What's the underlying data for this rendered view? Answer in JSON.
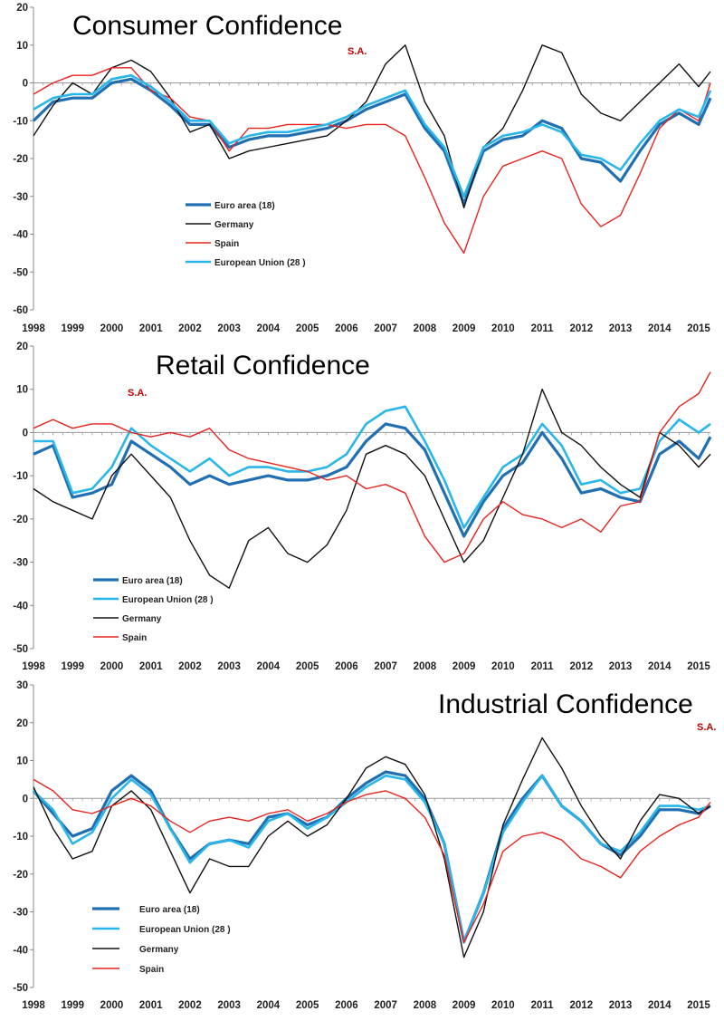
{
  "chart_data": [
    {
      "type": "line",
      "title": "Consumer Confidence",
      "note": "S.A.",
      "xlabel": "",
      "ylabel": "",
      "xlim": [
        1998,
        2015.3
      ],
      "ylim": [
        -60,
        20
      ],
      "yticks": [
        20,
        10,
        0,
        -10,
        -20,
        -30,
        -40,
        -50,
        -60
      ],
      "xticks": [
        "1998",
        "1999",
        "2000",
        "2001",
        "2002",
        "2003",
        "2004",
        "2005",
        "2006",
        "2007",
        "2008",
        "2009",
        "2010",
        "2011",
        "2012",
        "2013",
        "2014",
        "2015"
      ],
      "legend_position": "lower-left",
      "series": [
        {
          "name": "Euro area (18)",
          "color": "#1f6fb2",
          "x": [
            1998,
            1998.5,
            1999,
            1999.5,
            2000,
            2000.5,
            2001,
            2001.5,
            2002,
            2002.5,
            2003,
            2003.5,
            2004,
            2004.5,
            2005,
            2005.5,
            2006,
            2006.5,
            2007,
            2007.5,
            2008,
            2008.5,
            2009,
            2009.5,
            2010,
            2010.5,
            2011,
            2011.5,
            2012,
            2012.5,
            2013,
            2013.5,
            2014,
            2014.5,
            2015,
            2015.3
          ],
          "y": [
            -10,
            -5,
            -4,
            -4,
            0,
            1,
            -2,
            -6,
            -11,
            -11,
            -17,
            -15,
            -14,
            -14,
            -13,
            -12,
            -10,
            -7,
            -5,
            -3,
            -12,
            -18,
            -32,
            -18,
            -15,
            -14,
            -10,
            -12,
            -20,
            -21,
            -26,
            -18,
            -11,
            -8,
            -11,
            -4
          ]
        },
        {
          "name": "Germany",
          "color": "#111111",
          "x": [
            1998,
            1998.5,
            1999,
            1999.5,
            2000,
            2000.5,
            2001,
            2001.5,
            2002,
            2002.5,
            2003,
            2003.5,
            2004,
            2004.5,
            2005,
            2005.5,
            2006,
            2006.5,
            2007,
            2007.5,
            2008,
            2008.5,
            2009,
            2009.5,
            2010,
            2010.5,
            2011,
            2011.5,
            2012,
            2012.5,
            2013,
            2013.5,
            2014,
            2014.5,
            2015,
            2015.3
          ],
          "y": [
            -14,
            -6,
            0,
            -3,
            4,
            6,
            3,
            -4,
            -13,
            -11,
            -20,
            -18,
            -17,
            -16,
            -15,
            -14,
            -10,
            -5,
            5,
            10,
            -5,
            -14,
            -33,
            -17,
            -12,
            -2,
            10,
            8,
            -3,
            -8,
            -10,
            -5,
            0,
            5,
            -1,
            3
          ]
        },
        {
          "name": "Spain",
          "color": "#e8231e",
          "x": [
            1998,
            1998.5,
            1999,
            1999.5,
            2000,
            2000.5,
            2001,
            2001.5,
            2002,
            2002.5,
            2003,
            2003.5,
            2004,
            2004.5,
            2005,
            2005.5,
            2006,
            2006.5,
            2007,
            2007.5,
            2008,
            2008.5,
            2009,
            2009.5,
            2010,
            2010.5,
            2011,
            2011.5,
            2012,
            2012.5,
            2013,
            2013.5,
            2014,
            2014.5,
            2015,
            2015.3
          ],
          "y": [
            -3,
            0,
            2,
            2,
            4,
            4,
            -2,
            -4,
            -9,
            -10,
            -18,
            -12,
            -12,
            -11,
            -11,
            -11,
            -12,
            -11,
            -11,
            -14,
            -25,
            -37,
            -45,
            -30,
            -22,
            -20,
            -18,
            -20,
            -32,
            -38,
            -35,
            -24,
            -12,
            -7,
            -10,
            0
          ]
        },
        {
          "name": "European Union (28 )",
          "color": "#29b6ea",
          "x": [
            1998,
            1998.5,
            1999,
            1999.5,
            2000,
            2000.5,
            2001,
            2001.5,
            2002,
            2002.5,
            2003,
            2003.5,
            2004,
            2004.5,
            2005,
            2005.5,
            2006,
            2006.5,
            2007,
            2007.5,
            2008,
            2008.5,
            2009,
            2009.5,
            2010,
            2010.5,
            2011,
            2011.5,
            2012,
            2012.5,
            2013,
            2013.5,
            2014,
            2014.5,
            2015,
            2015.3
          ],
          "y": [
            -7,
            -4,
            -3,
            -3,
            1,
            2,
            -1,
            -5,
            -10,
            -10,
            -16,
            -14,
            -13,
            -13,
            -12,
            -11,
            -9,
            -6,
            -4,
            -2,
            -11,
            -17,
            -30,
            -17,
            -14,
            -13,
            -11,
            -13,
            -19,
            -20,
            -23,
            -16,
            -10,
            -7,
            -9,
            -2
          ]
        }
      ]
    },
    {
      "type": "line",
      "title": "Retail Confidence",
      "note": "S.A.",
      "xlabel": "",
      "ylabel": "",
      "xlim": [
        1998,
        2015.3
      ],
      "ylim": [
        -50,
        20
      ],
      "yticks": [
        20,
        10,
        0,
        -10,
        -20,
        -30,
        -40,
        -50
      ],
      "xticks": [
        "1998",
        "1999",
        "2000",
        "2001",
        "2002",
        "2003",
        "2004",
        "2005",
        "2006",
        "2007",
        "2008",
        "2009",
        "2010",
        "2011",
        "2012",
        "2013",
        "2014",
        "2015"
      ],
      "legend_position": "lower-left",
      "series": [
        {
          "name": "Euro area (18)",
          "color": "#1f6fb2",
          "x": [
            1998,
            1998.5,
            1999,
            1999.5,
            2000,
            2000.5,
            2001,
            2001.5,
            2002,
            2002.5,
            2003,
            2003.5,
            2004,
            2004.5,
            2005,
            2005.5,
            2006,
            2006.5,
            2007,
            2007.5,
            2008,
            2008.5,
            2009,
            2009.5,
            2010,
            2010.5,
            2011,
            2011.5,
            2012,
            2012.5,
            2013,
            2013.5,
            2014,
            2014.5,
            2015,
            2015.3
          ],
          "y": [
            -5,
            -3,
            -15,
            -14,
            -12,
            -2,
            -5,
            -8,
            -12,
            -10,
            -12,
            -11,
            -10,
            -11,
            -11,
            -10,
            -8,
            -2,
            2,
            1,
            -4,
            -14,
            -24,
            -16,
            -10,
            -7,
            0,
            -6,
            -14,
            -13,
            -15,
            -16,
            -5,
            -2,
            -6,
            -1
          ]
        },
        {
          "name": "European Union (28 )",
          "color": "#29b6ea",
          "x": [
            1998,
            1998.5,
            1999,
            1999.5,
            2000,
            2000.5,
            2001,
            2001.5,
            2002,
            2002.5,
            2003,
            2003.5,
            2004,
            2004.5,
            2005,
            2005.5,
            2006,
            2006.5,
            2007,
            2007.5,
            2008,
            2008.5,
            2009,
            2009.5,
            2010,
            2010.5,
            2011,
            2011.5,
            2012,
            2012.5,
            2013,
            2013.5,
            2014,
            2014.5,
            2015,
            2015.3
          ],
          "y": [
            -2,
            -2,
            -14,
            -13,
            -8,
            1,
            -3,
            -6,
            -9,
            -6,
            -10,
            -8,
            -8,
            -9,
            -9,
            -8,
            -5,
            2,
            5,
            6,
            -2,
            -11,
            -22,
            -15,
            -8,
            -5,
            2,
            -3,
            -12,
            -11,
            -14,
            -13,
            -2,
            3,
            0,
            2
          ]
        },
        {
          "name": "Germany",
          "color": "#111111",
          "x": [
            1998,
            1998.5,
            1999,
            1999.5,
            2000,
            2000.5,
            2001,
            2001.5,
            2002,
            2002.5,
            2003,
            2003.5,
            2004,
            2004.5,
            2005,
            2005.5,
            2006,
            2006.5,
            2007,
            2007.5,
            2008,
            2008.5,
            2009,
            2009.5,
            2010,
            2010.5,
            2011,
            2011.5,
            2012,
            2012.5,
            2013,
            2013.5,
            2014,
            2014.5,
            2015,
            2015.3
          ],
          "y": [
            -13,
            -16,
            -18,
            -20,
            -10,
            -5,
            -10,
            -15,
            -25,
            -33,
            -36,
            -25,
            -22,
            -28,
            -30,
            -26,
            -18,
            -5,
            -3,
            -5,
            -10,
            -20,
            -30,
            -25,
            -15,
            -5,
            10,
            0,
            -3,
            -8,
            -12,
            -15,
            0,
            -3,
            -8,
            -5
          ]
        },
        {
          "name": "Spain",
          "color": "#e8231e",
          "x": [
            1998,
            1998.5,
            1999,
            1999.5,
            2000,
            2000.5,
            2001,
            2001.5,
            2002,
            2002.5,
            2003,
            2003.5,
            2004,
            2004.5,
            2005,
            2005.5,
            2006,
            2006.5,
            2007,
            2007.5,
            2008,
            2008.5,
            2009,
            2009.5,
            2010,
            2010.5,
            2011,
            2011.5,
            2012,
            2012.5,
            2013,
            2013.5,
            2014,
            2014.5,
            2015,
            2015.3
          ],
          "y": [
            1,
            3,
            1,
            2,
            2,
            0,
            -1,
            0,
            -1,
            1,
            -4,
            -6,
            -7,
            -8,
            -9,
            -11,
            -10,
            -13,
            -12,
            -14,
            -24,
            -30,
            -28,
            -20,
            -16,
            -19,
            -20,
            -22,
            -20,
            -23,
            -17,
            -16,
            0,
            6,
            9,
            14
          ]
        }
      ]
    },
    {
      "type": "line",
      "title": "Industrial Confidence",
      "note": "S.A.",
      "xlabel": "",
      "ylabel": "",
      "xlim": [
        1998,
        2015.3
      ],
      "ylim": [
        -50,
        30
      ],
      "yticks": [
        30,
        20,
        10,
        0,
        -10,
        -20,
        -30,
        -40,
        -50
      ],
      "xticks": [
        "1998",
        "1999",
        "2000",
        "2001",
        "2002",
        "2003",
        "2004",
        "2005",
        "2006",
        "2007",
        "2008",
        "2009",
        "2010",
        "2011",
        "2012",
        "2013",
        "2014",
        "2015"
      ],
      "legend_position": "lower-left",
      "series": [
        {
          "name": "Euro area (18)",
          "color": "#1f6fb2",
          "x": [
            1998,
            1998.5,
            1999,
            1999.5,
            2000,
            2000.5,
            2001,
            2001.5,
            2002,
            2002.5,
            2003,
            2003.5,
            2004,
            2004.5,
            2005,
            2005.5,
            2006,
            2006.5,
            2007,
            2007.5,
            2008,
            2008.5,
            2009,
            2009.5,
            2010,
            2010.5,
            2011,
            2011.5,
            2012,
            2012.5,
            2013,
            2013.5,
            2014,
            2014.5,
            2015,
            2015.3
          ],
          "y": [
            2,
            -4,
            -10,
            -8,
            2,
            6,
            2,
            -8,
            -16,
            -12,
            -11,
            -12,
            -5,
            -4,
            -7,
            -5,
            0,
            4,
            7,
            6,
            0,
            -12,
            -38,
            -25,
            -8,
            0,
            6,
            -2,
            -6,
            -12,
            -15,
            -10,
            -3,
            -3,
            -4,
            -2
          ]
        },
        {
          "name": "European Union (28 )",
          "color": "#29b6ea",
          "x": [
            1998,
            1998.5,
            1999,
            1999.5,
            2000,
            2000.5,
            2001,
            2001.5,
            2002,
            2002.5,
            2003,
            2003.5,
            2004,
            2004.5,
            2005,
            2005.5,
            2006,
            2006.5,
            2007,
            2007.5,
            2008,
            2008.5,
            2009,
            2009.5,
            2010,
            2010.5,
            2011,
            2011.5,
            2012,
            2012.5,
            2013,
            2013.5,
            2014,
            2014.5,
            2015,
            2015.3
          ],
          "y": [
            2,
            -3,
            -12,
            -9,
            0,
            5,
            1,
            -8,
            -17,
            -12,
            -11,
            -13,
            -6,
            -4,
            -8,
            -5,
            -1,
            3,
            6,
            5,
            -1,
            -12,
            -38,
            -25,
            -9,
            -1,
            6,
            -2,
            -6,
            -12,
            -14,
            -9,
            -2,
            -2,
            -3,
            -2
          ]
        },
        {
          "name": "Germany",
          "color": "#111111",
          "x": [
            1998,
            1998.5,
            1999,
            1999.5,
            2000,
            2000.5,
            2001,
            2001.5,
            2002,
            2002.5,
            2003,
            2003.5,
            2004,
            2004.5,
            2005,
            2005.5,
            2006,
            2006.5,
            2007,
            2007.5,
            2008,
            2008.5,
            2009,
            2009.5,
            2010,
            2010.5,
            2011,
            2011.5,
            2012,
            2012.5,
            2013,
            2013.5,
            2014,
            2014.5,
            2015,
            2015.3
          ],
          "y": [
            3,
            -8,
            -16,
            -14,
            -2,
            2,
            -3,
            -14,
            -25,
            -16,
            -18,
            -18,
            -10,
            -6,
            -10,
            -7,
            0,
            8,
            11,
            9,
            1,
            -16,
            -42,
            -30,
            -7,
            5,
            16,
            8,
            -2,
            -10,
            -16,
            -6,
            1,
            0,
            -4,
            -2
          ]
        },
        {
          "name": "Spain",
          "color": "#e8231e",
          "x": [
            1998,
            1998.5,
            1999,
            1999.5,
            2000,
            2000.5,
            2001,
            2001.5,
            2002,
            2002.5,
            2003,
            2003.5,
            2004,
            2004.5,
            2005,
            2005.5,
            2006,
            2006.5,
            2007,
            2007.5,
            2008,
            2008.5,
            2009,
            2009.5,
            2010,
            2010.5,
            2011,
            2011.5,
            2012,
            2012.5,
            2013,
            2013.5,
            2014,
            2014.5,
            2015,
            2015.3
          ],
          "y": [
            5,
            2,
            -3,
            -4,
            -2,
            0,
            -2,
            -6,
            -9,
            -6,
            -5,
            -6,
            -4,
            -3,
            -6,
            -4,
            -1,
            1,
            2,
            0,
            -5,
            -15,
            -38,
            -28,
            -14,
            -10,
            -9,
            -11,
            -16,
            -18,
            -21,
            -14,
            -10,
            -7,
            -5,
            -1
          ]
        }
      ]
    }
  ]
}
